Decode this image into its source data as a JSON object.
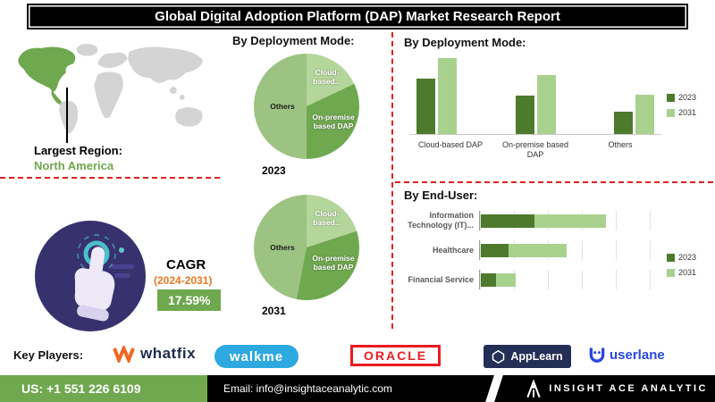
{
  "header": {
    "title": "Global Digital Adoption Platform (DAP) Market Research Report"
  },
  "left": {
    "largest_region_label": "Largest Region:",
    "largest_region_value": "North America",
    "cagr_label": "CAGR",
    "cagr_period": "(2024-2031)",
    "cagr_value": "17.59%"
  },
  "pies": {
    "heading": "By Deployment Mode:",
    "caption_2023": "2023",
    "caption_2031": "2031",
    "slice_labels": {
      "cloud": "Cloud-based...",
      "onprem": "On-premise based DAP",
      "others": "Others"
    }
  },
  "deployment_bar": {
    "heading": "By  Deployment Mode:",
    "legend": [
      "2023",
      "2031"
    ]
  },
  "end_user": {
    "heading": "By End-User:",
    "legend": [
      "2023",
      "2031"
    ]
  },
  "key_players": {
    "label": "Key Players:",
    "logos": [
      "whatfix",
      "walkme",
      "ORACLE",
      "AppLearn",
      "userlane"
    ]
  },
  "footer": {
    "phone": "US: +1 551 226 6109",
    "email": "Email: info@insightaceanalytic.com",
    "brand": "INSIGHT ACE ANALYTIC"
  },
  "colors": {
    "green_dark": "#4E7A2E",
    "green_mid": "#6FA84F",
    "green_light": "#A9D18E",
    "pie_others": "#9DC383",
    "orange": "#E87722",
    "red_dash": "#E02020",
    "purple_circle": "#37316E"
  },
  "chart_data": [
    {
      "type": "pie",
      "title": "By Deployment Mode: — 2023",
      "labels": [
        "Cloud-based DAP",
        "On-premise based DAP",
        "Others"
      ],
      "values": [
        18,
        32,
        50
      ],
      "unit": "% share (estimated from slice angles; no data labels shown)",
      "colors": [
        "#B5D69A",
        "#6FA84F",
        "#9DC383"
      ]
    },
    {
      "type": "pie",
      "title": "By Deployment Mode: — 2031",
      "labels": [
        "Cloud-based DAP",
        "On-premise based DAP",
        "Others"
      ],
      "values": [
        20,
        33,
        47
      ],
      "unit": "% share (estimated from slice angles; no data labels shown)",
      "colors": [
        "#B5D69A",
        "#6FA84F",
        "#9DC383"
      ]
    },
    {
      "type": "bar",
      "title": "By Deployment Mode:",
      "categories": [
        "Cloud-based DAP",
        "On-premise based DAP",
        "Others"
      ],
      "series": [
        {
          "name": "2023",
          "values": [
            5.5,
            3.8,
            2.2
          ]
        },
        {
          "name": "2031",
          "values": [
            7.6,
            5.9,
            3.9
          ]
        }
      ],
      "xlabel": "",
      "ylabel": "",
      "note": "axis unlabeled; values are relative estimates from bar heights",
      "colors": {
        "2023": "#4E7A2E",
        "2031": "#A9D18E"
      },
      "legend_position": "right",
      "grid": false
    },
    {
      "type": "bar",
      "orientation": "horizontal",
      "stacked": true,
      "title": "By End-User:",
      "categories": [
        "Information Technology (IT)...",
        "Healthcare",
        "Financial Service"
      ],
      "series": [
        {
          "name": "2023",
          "values": [
            3.5,
            1.8,
            1.0
          ]
        },
        {
          "name": "2031",
          "values": [
            4.7,
            3.8,
            1.3
          ]
        }
      ],
      "xlabel": "",
      "ylabel": "",
      "note": "axis unlabeled; values are relative estimates from bar lengths",
      "colors": {
        "2023": "#4E7A2E",
        "2031": "#A9D18E"
      },
      "legend_position": "right",
      "grid": true
    }
  ]
}
